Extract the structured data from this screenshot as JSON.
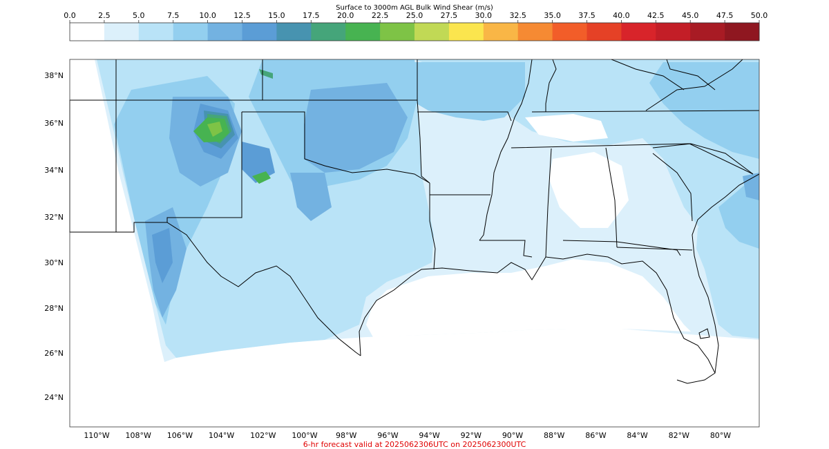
{
  "colorbar": {
    "title": "Surface to 3000m AGL Bulk Wind Shear (m/s)",
    "ticks": [
      "0.0",
      "2.5",
      "5.0",
      "7.5",
      "10.0",
      "12.5",
      "15.0",
      "17.5",
      "20.0",
      "22.5",
      "25.0",
      "27.5",
      "30.0",
      "32.5",
      "35.0",
      "37.5",
      "40.0",
      "42.5",
      "45.0",
      "47.5",
      "50.0"
    ],
    "colors": [
      "#ffffff",
      "#dcf0fb",
      "#b9e3f7",
      "#93cfef",
      "#73b2e1",
      "#5b9dd6",
      "#4793b0",
      "#45a57a",
      "#47b351",
      "#7ec346",
      "#c1d955",
      "#fbe54e",
      "#f9b646",
      "#f68a33",
      "#f25d29",
      "#e54126",
      "#d8242a",
      "#c31e27",
      "#a81b24",
      "#8f1720"
    ]
  },
  "map": {
    "lat_labels": [
      "38°N",
      "36°N",
      "34°N",
      "32°N",
      "30°N",
      "28°N",
      "26°N",
      "24°N"
    ],
    "lon_labels": [
      "110°W",
      "108°W",
      "106°W",
      "104°W",
      "102°W",
      "100°W",
      "98°W",
      "96°W",
      "94°W",
      "92°W",
      "90°W",
      "88°W",
      "86°W",
      "84°W",
      "82°W",
      "80°W"
    ]
  },
  "caption": "6-hr forecast valid at 2025062306UTC on 2025062300UTC"
}
